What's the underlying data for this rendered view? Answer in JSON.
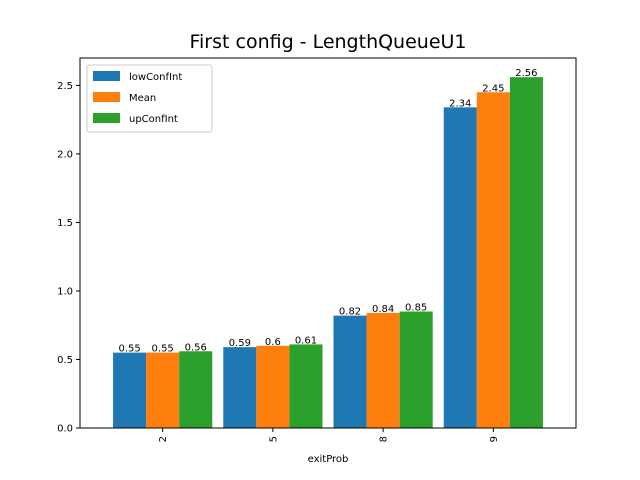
{
  "chart_data": {
    "type": "bar",
    "title": "First config - LengthQueueU1",
    "xlabel": "exitProb",
    "ylabel": "",
    "categories": [
      "2",
      "5",
      "8",
      "9"
    ],
    "series": [
      {
        "name": "lowConfInt",
        "values": [
          0.55,
          0.59,
          0.82,
          2.34
        ],
        "labels": [
          "0.55",
          "0.59",
          "0.82",
          "2.34"
        ],
        "color": "#1f77b4"
      },
      {
        "name": "Mean",
        "values": [
          0.55,
          0.6,
          0.84,
          2.45
        ],
        "labels": [
          "0.55",
          "0.6",
          "0.84",
          "2.45"
        ],
        "color": "#ff7f0e"
      },
      {
        "name": "upConfInt",
        "values": [
          0.56,
          0.61,
          0.85,
          2.56
        ],
        "labels": [
          "0.56",
          "0.61",
          "0.85",
          "2.56"
        ],
        "color": "#2ca02c"
      }
    ],
    "ylim": [
      0,
      2.7
    ],
    "yticks": [
      0.0,
      0.5,
      1.0,
      1.5,
      2.0,
      2.5
    ],
    "ytick_labels": [
      "0.0",
      "0.5",
      "1.0",
      "1.5",
      "2.0",
      "2.5"
    ],
    "xtick_rotation": 90,
    "legend_position": "top-left",
    "grid": false
  }
}
